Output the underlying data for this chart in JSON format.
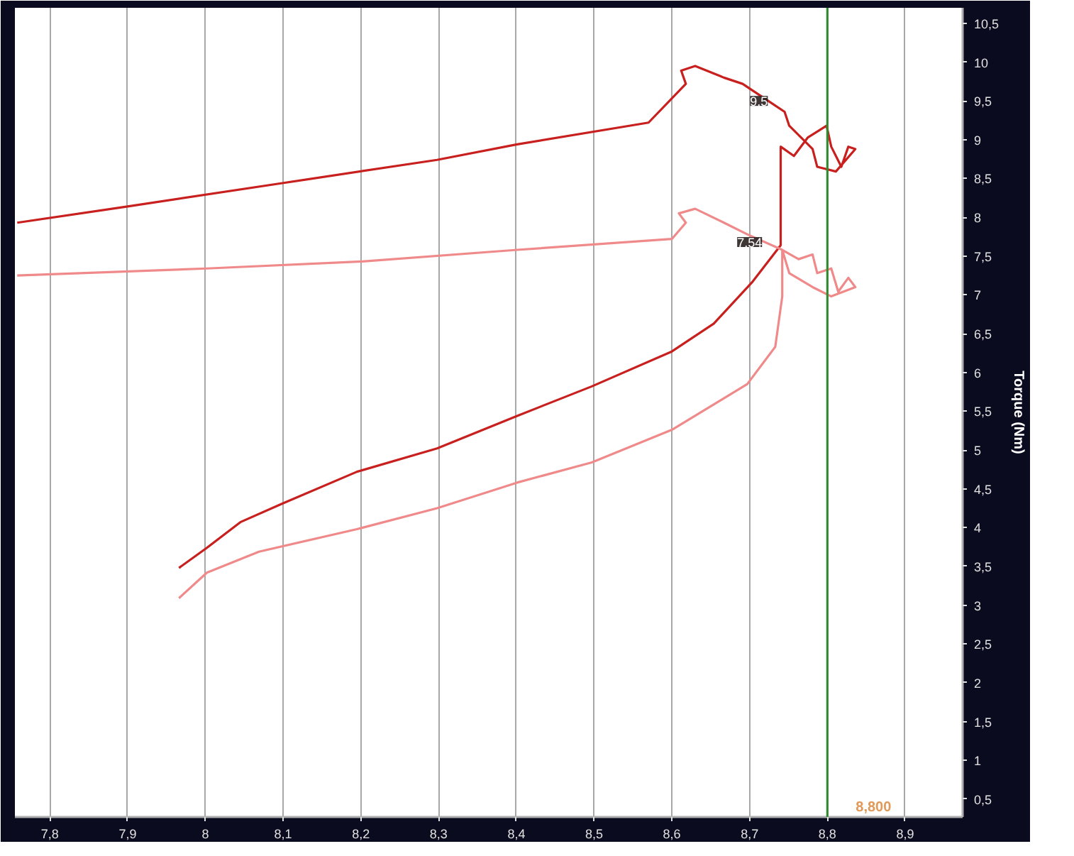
{
  "chart_data": {
    "type": "line",
    "y2label": "Torque (Nm)",
    "xlim": [
      7.755,
      8.974
    ],
    "ylim": [
      0.27,
      10.7
    ],
    "xticks": [
      {
        "value": 7.8,
        "label": "7,8"
      },
      {
        "value": 7.9,
        "label": "7,9"
      },
      8,
      {
        "value": 8.1,
        "label": "8,1"
      },
      {
        "value": 8.2,
        "label": "8,2"
      },
      {
        "value": 8.3,
        "label": "8,3"
      },
      {
        "value": 8.4,
        "label": "8,4"
      },
      {
        "value": 8.5,
        "label": "8,5"
      },
      {
        "value": 8.6,
        "label": "8,6"
      },
      {
        "value": 8.7,
        "label": "8,7"
      },
      {
        "value": 8.8,
        "label": "8,8"
      },
      {
        "value": 8.9,
        "label": "8,9"
      }
    ],
    "yticks": [
      {
        "value": 0.5,
        "label": "0,5"
      },
      1,
      {
        "value": 1.5,
        "label": "1,5"
      },
      2,
      {
        "value": 2.5,
        "label": "2,5"
      },
      3,
      {
        "value": 3.5,
        "label": "3,5"
      },
      4,
      {
        "value": 4.5,
        "label": "4,5"
      },
      5,
      {
        "value": 5.5,
        "label": "5,5"
      },
      6,
      {
        "value": 6.5,
        "label": "6,5"
      },
      7,
      {
        "value": 7.5,
        "label": "7,5"
      },
      8,
      {
        "value": 8.5,
        "label": "8,5"
      },
      9,
      {
        "value": 9.5,
        "label": "9,5"
      },
      10,
      {
        "value": 10.5,
        "label": "10,5"
      }
    ],
    "grid": "x",
    "line_style": "solid",
    "series": [
      {
        "color": "#c8201e",
        "x": [
          7.966,
          8.002,
          8.045,
          8.099,
          8.195,
          8.298,
          8.401,
          8.497,
          8.6,
          8.654,
          8.703,
          8.74,
          8.74,
          8.757,
          8.775,
          8.799,
          8.805,
          8.818,
          8.827,
          8.836,
          8.811,
          8.787,
          8.781,
          8.751,
          8.745,
          8.727,
          8.691,
          8.667,
          8.63,
          8.612,
          8.618,
          8.57,
          8.401,
          8.298,
          8.099,
          7.9,
          7.758
        ],
        "values": [
          3.48,
          3.74,
          4.07,
          4.31,
          4.72,
          5.02,
          5.44,
          5.82,
          6.27,
          6.63,
          7.16,
          7.64,
          8.91,
          8.79,
          9.03,
          9.18,
          8.91,
          8.65,
          8.91,
          8.88,
          8.59,
          8.65,
          8.88,
          9.18,
          9.36,
          9.48,
          9.72,
          9.8,
          9.95,
          9.89,
          9.72,
          9.22,
          8.94,
          8.74,
          8.44,
          8.14,
          7.93
        ]
      },
      {
        "color": "#f08a8a",
        "x": [
          7.966,
          8.002,
          8.069,
          8.195,
          8.298,
          8.401,
          8.497,
          8.6,
          8.697,
          8.733,
          8.742,
          8.742,
          8.763,
          8.781,
          8.787,
          8.805,
          8.814,
          8.827,
          8.836,
          8.805,
          8.781,
          8.751,
          8.742,
          8.697,
          8.667,
          8.63,
          8.609,
          8.618,
          8.6,
          8.401,
          8.202,
          8.002,
          7.758
        ],
        "values": [
          3.09,
          3.42,
          3.69,
          3.98,
          4.25,
          4.58,
          4.84,
          5.26,
          5.85,
          6.33,
          6.98,
          7.58,
          7.46,
          7.52,
          7.28,
          7.34,
          7.04,
          7.22,
          7.1,
          6.98,
          7.1,
          7.28,
          7.58,
          7.78,
          7.93,
          8.11,
          8.05,
          7.93,
          7.72,
          7.58,
          7.43,
          7.34,
          7.25
        ]
      }
    ],
    "ref_lines": [
      {
        "axis": "x",
        "value": 8.8,
        "label": "8,800",
        "color": "#2e8b2e"
      }
    ],
    "annotations": [
      {
        "text": "9,5",
        "x": 8.712,
        "y": 9.5
      },
      {
        "text": "7,54",
        "x": 8.7,
        "y": 7.68
      }
    ]
  }
}
